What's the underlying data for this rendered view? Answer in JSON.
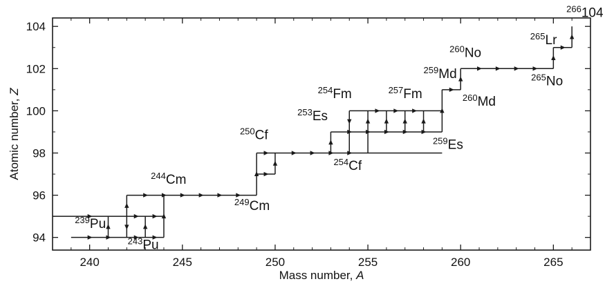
{
  "chart_data": {
    "type": "line",
    "xlabel": "Mass number, ",
    "xlabel_var": "A",
    "ylabel": "Atomic number, ",
    "ylabel_var": "Z",
    "xlim": [
      238,
      267
    ],
    "ylim": [
      93.4,
      104.4
    ],
    "x_ticks": [
      "240",
      "245",
      "250",
      "255",
      "260",
      "265"
    ],
    "x_tick_values": [
      240,
      245,
      250,
      255,
      260,
      265
    ],
    "y_ticks": [
      "94",
      "96",
      "98",
      "100",
      "102",
      "104"
    ],
    "y_tick_values": [
      94,
      96,
      98,
      100,
      102,
      104
    ],
    "grid": false,
    "line_color": "#1a1a1a",
    "paths": [
      {
        "x": [
          239,
          244
        ],
        "y": [
          94,
          94
        ]
      },
      {
        "x": [
          244,
          244
        ],
        "y": [
          94,
          96
        ]
      },
      {
        "x": [
          238,
          241
        ],
        "y": [
          95,
          95
        ]
      },
      {
        "x": [
          241,
          241
        ],
        "y": [
          94,
          95
        ]
      },
      {
        "x": [
          241,
          244
        ],
        "y": [
          95,
          95
        ]
      },
      {
        "x": [
          242,
          242
        ],
        "y": [
          94,
          96
        ]
      },
      {
        "x": [
          243,
          243
        ],
        "y": [
          94,
          95
        ]
      },
      {
        "x": [
          242,
          249
        ],
        "y": [
          96,
          96
        ]
      },
      {
        "x": [
          249,
          249
        ],
        "y": [
          96,
          98
        ]
      },
      {
        "x": [
          249,
          259
        ],
        "y": [
          98,
          98
        ]
      },
      {
        "x": [
          249,
          250
        ],
        "y": [
          97,
          97
        ]
      },
      {
        "x": [
          250,
          250
        ],
        "y": [
          97,
          98
        ]
      },
      {
        "x": [
          253,
          253
        ],
        "y": [
          98,
          99
        ]
      },
      {
        "x": [
          253,
          259
        ],
        "y": [
          99,
          99
        ]
      },
      {
        "x": [
          254,
          254
        ],
        "y": [
          98,
          100
        ]
      },
      {
        "x": [
          255,
          255
        ],
        "y": [
          98,
          100
        ]
      },
      {
        "x": [
          254,
          259
        ],
        "y": [
          100,
          100
        ]
      },
      {
        "x": [
          256,
          256
        ],
        "y": [
          99,
          100
        ]
      },
      {
        "x": [
          257,
          257
        ],
        "y": [
          99,
          100
        ]
      },
      {
        "x": [
          258,
          258
        ],
        "y": [
          99,
          100
        ]
      },
      {
        "x": [
          259,
          259
        ],
        "y": [
          99,
          101
        ]
      },
      {
        "x": [
          259,
          260
        ],
        "y": [
          101,
          101
        ]
      },
      {
        "x": [
          260,
          260
        ],
        "y": [
          101,
          102
        ]
      },
      {
        "x": [
          260,
          265
        ],
        "y": [
          102,
          102
        ]
      },
      {
        "x": [
          265,
          265
        ],
        "y": [
          102,
          103
        ]
      },
      {
        "x": [
          265,
          266
        ],
        "y": [
          103,
          103
        ]
      },
      {
        "x": [
          266,
          266
        ],
        "y": [
          103,
          104
        ]
      }
    ],
    "arrows": [
      {
        "x": 240,
        "y": 94,
        "dir": "right"
      },
      {
        "x": 241,
        "y": 94,
        "dir": "right"
      },
      {
        "x": 242.5,
        "y": 94,
        "dir": "right"
      },
      {
        "x": 243.5,
        "y": 94,
        "dir": "right"
      },
      {
        "x": 241,
        "y": 94.5,
        "dir": "up"
      },
      {
        "x": 242,
        "y": 94.5,
        "dir": "down"
      },
      {
        "x": 243,
        "y": 94.5,
        "dir": "up"
      },
      {
        "x": 244,
        "y": 95,
        "dir": "up"
      },
      {
        "x": 240,
        "y": 95,
        "dir": "right"
      },
      {
        "x": 242.5,
        "y": 95,
        "dir": "right"
      },
      {
        "x": 243.5,
        "y": 95,
        "dir": "right"
      },
      {
        "x": 242,
        "y": 95.5,
        "dir": "up"
      },
      {
        "x": 243,
        "y": 96,
        "dir": "right"
      },
      {
        "x": 244,
        "y": 96,
        "dir": "right"
      },
      {
        "x": 245,
        "y": 96,
        "dir": "right"
      },
      {
        "x": 246,
        "y": 96,
        "dir": "right"
      },
      {
        "x": 247,
        "y": 96,
        "dir": "right"
      },
      {
        "x": 248,
        "y": 96,
        "dir": "right"
      },
      {
        "x": 249,
        "y": 97,
        "dir": "up"
      },
      {
        "x": 249.5,
        "y": 97,
        "dir": "right"
      },
      {
        "x": 250,
        "y": 97.5,
        "dir": "up"
      },
      {
        "x": 249.5,
        "y": 98,
        "dir": "right"
      },
      {
        "x": 251,
        "y": 98,
        "dir": "right"
      },
      {
        "x": 252,
        "y": 98,
        "dir": "right"
      },
      {
        "x": 253,
        "y": 98,
        "dir": "right"
      },
      {
        "x": 254,
        "y": 98,
        "dir": "right"
      },
      {
        "x": 253,
        "y": 98.5,
        "dir": "up"
      },
      {
        "x": 254,
        "y": 99.5,
        "dir": "down"
      },
      {
        "x": 255,
        "y": 99.5,
        "dir": "up"
      },
      {
        "x": 254,
        "y": 99,
        "dir": "right"
      },
      {
        "x": 255,
        "y": 99,
        "dir": "right"
      },
      {
        "x": 256,
        "y": 99,
        "dir": "right"
      },
      {
        "x": 257,
        "y": 99,
        "dir": "right"
      },
      {
        "x": 258,
        "y": 99,
        "dir": "right"
      },
      {
        "x": 255.5,
        "y": 100,
        "dir": "right"
      },
      {
        "x": 256.5,
        "y": 100,
        "dir": "right"
      },
      {
        "x": 257.5,
        "y": 100,
        "dir": "right"
      },
      {
        "x": 256,
        "y": 99.5,
        "dir": "up"
      },
      {
        "x": 257,
        "y": 99.5,
        "dir": "up"
      },
      {
        "x": 258,
        "y": 99.5,
        "dir": "up"
      },
      {
        "x": 259,
        "y": 100,
        "dir": "up"
      },
      {
        "x": 259.5,
        "y": 101,
        "dir": "right"
      },
      {
        "x": 260,
        "y": 101.5,
        "dir": "up"
      },
      {
        "x": 261,
        "y": 102,
        "dir": "right"
      },
      {
        "x": 262,
        "y": 102,
        "dir": "right"
      },
      {
        "x": 263,
        "y": 102,
        "dir": "right"
      },
      {
        "x": 264,
        "y": 102,
        "dir": "right"
      },
      {
        "x": 265,
        "y": 102.5,
        "dir": "up"
      },
      {
        "x": 265.5,
        "y": 103,
        "dir": "right"
      },
      {
        "x": 266,
        "y": 103.5,
        "dir": "up"
      }
    ],
    "annotations": [
      {
        "mass": "239",
        "element": "Pu",
        "x": 239.2,
        "y": 94.45
      },
      {
        "mass": "243",
        "element": "Pu",
        "x": 242.05,
        "y": 93.45
      },
      {
        "mass": "244",
        "element": "Cm",
        "x": 243.3,
        "y": 96.55
      },
      {
        "mass": "249",
        "element": "Cm",
        "x": 247.8,
        "y": 95.3
      },
      {
        "mass": "250",
        "element": "Cf",
        "x": 248.1,
        "y": 98.65
      },
      {
        "mass": "253",
        "element": "Es",
        "x": 251.2,
        "y": 99.55
      },
      {
        "mass": "254",
        "element": "Fm",
        "x": 252.3,
        "y": 100.6
      },
      {
        "mass": "254",
        "element": "Cf",
        "x": 253.15,
        "y": 97.2
      },
      {
        "mass": "257",
        "element": "Fm",
        "x": 256.1,
        "y": 100.6
      },
      {
        "mass": "259",
        "element": "Es",
        "x": 258.5,
        "y": 98.2
      },
      {
        "mass": "259",
        "element": "Md",
        "x": 258.0,
        "y": 101.55
      },
      {
        "mass": "260",
        "element": "Md",
        "x": 260.1,
        "y": 100.25
      },
      {
        "mass": "260",
        "element": "No",
        "x": 259.4,
        "y": 102.55
      },
      {
        "mass": "265",
        "element": "Lr",
        "x": 263.75,
        "y": 103.15
      },
      {
        "mass": "265",
        "element": "No",
        "x": 263.8,
        "y": 101.2
      },
      {
        "mass": "266",
        "element": "104",
        "x": 265.7,
        "y": 104.45
      }
    ]
  }
}
